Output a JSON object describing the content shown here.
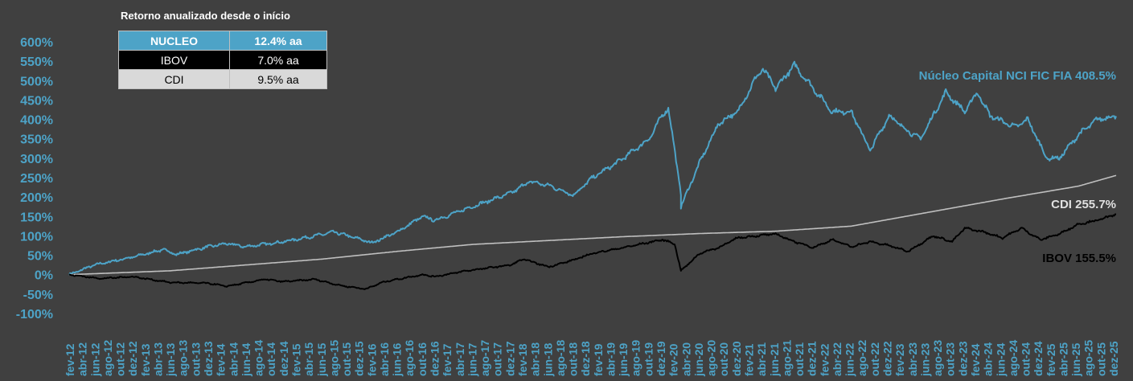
{
  "chart_data": {
    "type": "line",
    "title": "",
    "xlabel": "",
    "ylabel": "",
    "ylim": [
      -100,
      600
    ],
    "y_tick_labels": [
      "600%",
      "550%",
      "500%",
      "450%",
      "400%",
      "350%",
      "300%",
      "250%",
      "200%",
      "150%",
      "100%",
      "50%",
      "0%",
      "-50%",
      "-100%"
    ],
    "x_tick_labels": [
      "fev-12",
      "abr-12",
      "jun-12",
      "ago-12",
      "out-12",
      "dez-12",
      "fev-13",
      "abr-13",
      "jun-13",
      "ago-13",
      "out-13",
      "dez-13",
      "fev-14",
      "abr-14",
      "jun-14",
      "ago-14",
      "out-14",
      "dez-14",
      "fev-15",
      "abr-15",
      "jun-15",
      "ago-15",
      "out-15",
      "dez-15",
      "fev-16",
      "abr-16",
      "jun-16",
      "ago-16",
      "out-16",
      "dez-16",
      "fev-17",
      "abr-17",
      "jun-17",
      "ago-17",
      "out-17",
      "dez-17",
      "fev-18",
      "abr-18",
      "jun-18",
      "ago-18",
      "out-18",
      "dez-18",
      "fev-19",
      "abr-19",
      "jun-19",
      "ago-19",
      "out-19",
      "dez-19",
      "fev-20",
      "abr-20",
      "jun-20",
      "ago-20",
      "out-20",
      "dez-20",
      "fev-21",
      "abr-21",
      "jun-21",
      "ago-21",
      "out-21",
      "dez-21",
      "fev-22",
      "abr-22",
      "jun-22",
      "ago-22",
      "out-22",
      "dez-22",
      "fev-23",
      "abr-23",
      "jun-23",
      "ago-23",
      "out-23",
      "dez-23",
      "fev-24",
      "abr-24",
      "jun-24",
      "ago-24",
      "out-24",
      "dez-24",
      "fev-25",
      "abr-25",
      "jun-25",
      "ago-25",
      "out-25",
      "dez-25"
    ],
    "x_range": [
      "2012-02",
      "2025-12"
    ],
    "grid": false,
    "series": [
      {
        "label": "Núcleo Capital NCI FIC FIA",
        "end_label": "408.5%",
        "color": "#4da3c7",
        "points": [
          [
            "2012-02",
            0
          ],
          [
            "2012-06",
            25
          ],
          [
            "2012-12",
            45
          ],
          [
            "2013-05",
            65
          ],
          [
            "2013-07",
            52
          ],
          [
            "2013-12",
            72
          ],
          [
            "2014-03",
            80
          ],
          [
            "2014-06",
            72
          ],
          [
            "2014-12",
            85
          ],
          [
            "2015-05",
            100
          ],
          [
            "2015-08",
            110
          ],
          [
            "2015-12",
            92
          ],
          [
            "2016-02",
            82
          ],
          [
            "2016-06",
            110
          ],
          [
            "2016-10",
            150
          ],
          [
            "2016-12",
            140
          ],
          [
            "2017-05",
            170
          ],
          [
            "2017-12",
            210
          ],
          [
            "2018-03",
            240
          ],
          [
            "2018-06",
            230
          ],
          [
            "2018-10",
            205
          ],
          [
            "2019-01",
            250
          ],
          [
            "2019-05",
            290
          ],
          [
            "2019-10",
            350
          ],
          [
            "2019-12",
            410
          ],
          [
            "2020-01",
            430
          ],
          [
            "2020-03",
            210
          ],
          [
            "2020-03",
            175
          ],
          [
            "2020-06",
            290
          ],
          [
            "2020-09",
            390
          ],
          [
            "2020-12",
            420
          ],
          [
            "2021-03",
            510
          ],
          [
            "2021-04",
            530
          ],
          [
            "2021-06",
            480
          ],
          [
            "2021-09",
            540
          ],
          [
            "2021-12",
            480
          ],
          [
            "2022-03",
            420
          ],
          [
            "2022-06",
            420
          ],
          [
            "2022-09",
            320
          ],
          [
            "2022-12",
            410
          ],
          [
            "2023-03",
            370
          ],
          [
            "2023-05",
            350
          ],
          [
            "2023-09",
            470
          ],
          [
            "2023-12",
            420
          ],
          [
            "2024-02",
            470
          ],
          [
            "2024-04",
            410
          ],
          [
            "2024-08",
            380
          ],
          [
            "2024-10",
            400
          ],
          [
            "2025-01",
            300
          ],
          [
            "2025-03",
            300
          ],
          [
            "2025-06",
            360
          ],
          [
            "2025-09",
            400
          ],
          [
            "2025-12",
            408.5
          ]
        ]
      },
      {
        "label": "CDI",
        "end_label": "255.7%",
        "color": "#bfbfbf",
        "points": [
          [
            "2012-02",
            0
          ],
          [
            "2013-06",
            10
          ],
          [
            "2014-06",
            25
          ],
          [
            "2015-06",
            40
          ],
          [
            "2016-06",
            60
          ],
          [
            "2017-06",
            78
          ],
          [
            "2018-06",
            88
          ],
          [
            "2019-06",
            98
          ],
          [
            "2020-06",
            106
          ],
          [
            "2021-06",
            112
          ],
          [
            "2022-06",
            125
          ],
          [
            "2023-06",
            160
          ],
          [
            "2024-06",
            195
          ],
          [
            "2025-06",
            228
          ],
          [
            "2025-12",
            255.7
          ]
        ]
      },
      {
        "label": "IBOV",
        "end_label": "155.5%",
        "color": "#000000",
        "points": [
          [
            "2012-02",
            0
          ],
          [
            "2012-07",
            -10
          ],
          [
            "2012-12",
            -5
          ],
          [
            "2013-06",
            -20
          ],
          [
            "2013-12",
            -22
          ],
          [
            "2014-03",
            -30
          ],
          [
            "2014-09",
            -12
          ],
          [
            "2014-12",
            -18
          ],
          [
            "2015-05",
            -12
          ],
          [
            "2015-09",
            -28
          ],
          [
            "2016-01",
            -37
          ],
          [
            "2016-04",
            -18
          ],
          [
            "2016-10",
            0
          ],
          [
            "2016-12",
            -5
          ],
          [
            "2017-05",
            10
          ],
          [
            "2017-12",
            25
          ],
          [
            "2018-02",
            40
          ],
          [
            "2018-06",
            20
          ],
          [
            "2018-10",
            38
          ],
          [
            "2019-01",
            55
          ],
          [
            "2019-06",
            70
          ],
          [
            "2019-12",
            90
          ],
          [
            "2020-02",
            80
          ],
          [
            "2020-03",
            10
          ],
          [
            "2020-06",
            55
          ],
          [
            "2020-09",
            70
          ],
          [
            "2020-12",
            95
          ],
          [
            "2021-06",
            105
          ],
          [
            "2021-09",
            85
          ],
          [
            "2021-12",
            70
          ],
          [
            "2022-03",
            90
          ],
          [
            "2022-06",
            72
          ],
          [
            "2022-09",
            85
          ],
          [
            "2022-12",
            75
          ],
          [
            "2023-03",
            60
          ],
          [
            "2023-07",
            100
          ],
          [
            "2023-10",
            85
          ],
          [
            "2023-12",
            120
          ],
          [
            "2024-03",
            110
          ],
          [
            "2024-06",
            95
          ],
          [
            "2024-09",
            120
          ],
          [
            "2024-12",
            90
          ],
          [
            "2025-03",
            105
          ],
          [
            "2025-06",
            130
          ],
          [
            "2025-09",
            140
          ],
          [
            "2025-12",
            155.5
          ]
        ]
      }
    ]
  },
  "table": {
    "title": "Retorno anualizado desde o início",
    "rows": [
      {
        "name": "NUCLEO",
        "value": "12.4% aa"
      },
      {
        "name": "IBOV",
        "value": "7.0% aa"
      },
      {
        "name": "CDI",
        "value": "9.5% aa"
      }
    ]
  },
  "colors": {
    "background": "#404040",
    "axis_text": "#4da3c7",
    "nucleo": "#4da3c7",
    "cdi": "#bfbfbf",
    "ibov": "#000000",
    "cdi_label": "#e0e0e0"
  }
}
